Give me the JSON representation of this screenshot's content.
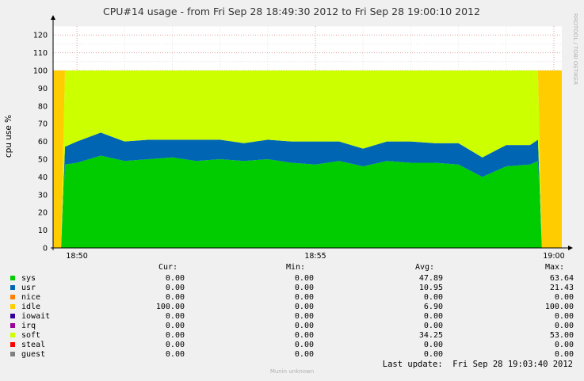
{
  "chart_data": {
    "type": "area",
    "title": "CPU#14 usage - from Fri Sep 28 18:49:30 2012 to Fri Sep 28 19:00:10 2012",
    "ylabel": "cpu use %",
    "watermark": "RRDTOOL / TOBI OETIKER",
    "ylim": [
      0,
      125
    ],
    "yticks": [
      0,
      10,
      20,
      30,
      40,
      50,
      60,
      70,
      80,
      90,
      100,
      110,
      120
    ],
    "xticks": [
      "18:50",
      "18:55",
      "19:00"
    ],
    "grid": true,
    "x_start": "18:49:30",
    "x_end": "19:00:10",
    "x": [
      "18:49:30",
      "18:49:40",
      "18:49:45",
      "18:50:00",
      "18:50:30",
      "18:51:00",
      "18:51:30",
      "18:52:00",
      "18:52:30",
      "18:53:00",
      "18:53:30",
      "18:54:00",
      "18:54:30",
      "18:55:00",
      "18:55:30",
      "18:56:00",
      "18:56:30",
      "18:57:00",
      "18:57:30",
      "18:58:00",
      "18:58:30",
      "18:59:00",
      "18:59:30",
      "18:59:40",
      "18:59:45",
      "19:00:10"
    ],
    "series": [
      {
        "name": "sys",
        "color": "#00cc00",
        "values": [
          0,
          0,
          47,
          48,
          52,
          49,
          50,
          51,
          49,
          50,
          49,
          50,
          48,
          47,
          49,
          46,
          49,
          48,
          48,
          47,
          40,
          46,
          47,
          49,
          0,
          0
        ]
      },
      {
        "name": "usr",
        "color": "#0066b3",
        "values": [
          0,
          0,
          10,
          12,
          13,
          11,
          11,
          10,
          12,
          11,
          10,
          11,
          12,
          13,
          11,
          10,
          11,
          12,
          11,
          12,
          11,
          12,
          11,
          12,
          0,
          0
        ]
      },
      {
        "name": "soft",
        "color": "#ccff00",
        "values": [
          0,
          0,
          43,
          40,
          35,
          40,
          39,
          39,
          39,
          39,
          41,
          39,
          40,
          40,
          40,
          44,
          40,
          40,
          41,
          41,
          49,
          42,
          42,
          39,
          0,
          0
        ]
      },
      {
        "name": "idle",
        "color": "#ffcc00",
        "values": [
          100,
          100,
          0,
          0,
          0,
          0,
          0,
          0,
          0,
          0,
          0,
          0,
          0,
          0,
          0,
          0,
          0,
          0,
          0,
          0,
          0,
          0,
          0,
          0,
          100,
          100
        ]
      }
    ],
    "legend": {
      "columns": [
        "Cur:",
        "Min:",
        "Avg:",
        "Max:"
      ],
      "rows": [
        {
          "name": "sys",
          "color": "#00cc00",
          "cur": "0.00",
          "min": "0.00",
          "avg": "47.89",
          "max": "63.64"
        },
        {
          "name": "usr",
          "color": "#0066b3",
          "cur": "0.00",
          "min": "0.00",
          "avg": "10.95",
          "max": "21.43"
        },
        {
          "name": "nice",
          "color": "#ff8000",
          "cur": "0.00",
          "min": "0.00",
          "avg": "0.00",
          "max": "0.00"
        },
        {
          "name": "idle",
          "color": "#ffcc00",
          "cur": "100.00",
          "min": "0.00",
          "avg": "6.90",
          "max": "100.00"
        },
        {
          "name": "iowait",
          "color": "#330099",
          "cur": "0.00",
          "min": "0.00",
          "avg": "0.00",
          "max": "0.00"
        },
        {
          "name": "irq",
          "color": "#990099",
          "cur": "0.00",
          "min": "0.00",
          "avg": "0.00",
          "max": "0.00"
        },
        {
          "name": "soft",
          "color": "#ccff00",
          "cur": "0.00",
          "min": "0.00",
          "avg": "34.25",
          "max": "53.00"
        },
        {
          "name": "steal",
          "color": "#ff0000",
          "cur": "0.00",
          "min": "0.00",
          "avg": "0.00",
          "max": "0.00"
        },
        {
          "name": "guest",
          "color": "#808080",
          "cur": "0.00",
          "min": "0.00",
          "avg": "0.00",
          "max": "0.00"
        }
      ]
    },
    "last_update": "Last update:  Fri Sep 28 19:03:40 2012",
    "footer": "Munin unknown"
  }
}
